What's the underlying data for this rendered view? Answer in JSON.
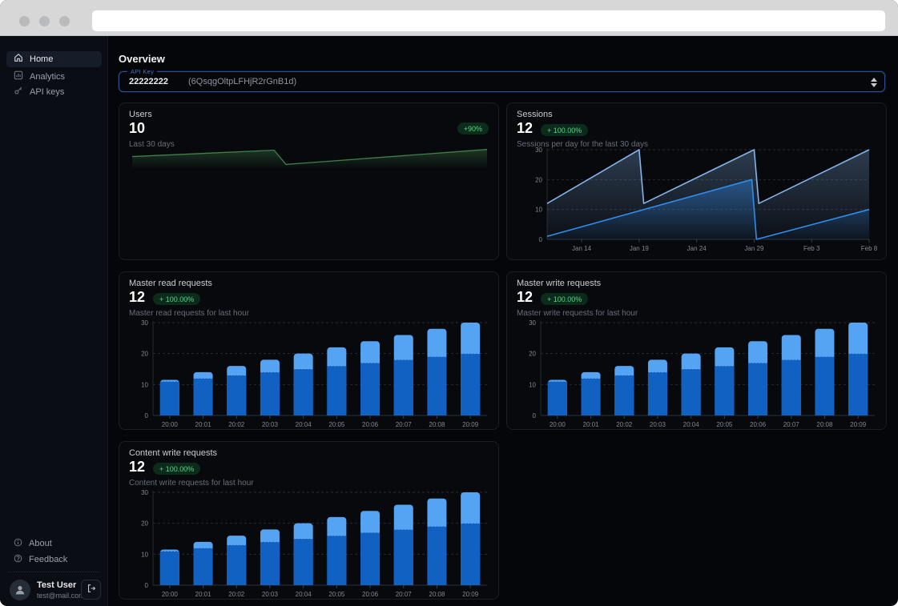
{
  "browser": {
    "url": ""
  },
  "sidebar": {
    "items": [
      {
        "label": "Home",
        "icon": "home-icon",
        "active": true
      },
      {
        "label": "Analytics",
        "icon": "analytics-icon",
        "active": false
      },
      {
        "label": "API keys",
        "icon": "key-icon",
        "active": false
      }
    ],
    "footer_items": [
      {
        "label": "About",
        "icon": "info-icon"
      },
      {
        "label": "Feedback",
        "icon": "feedback-icon"
      }
    ],
    "user": {
      "name": "Test User",
      "email": "test@mail.com"
    }
  },
  "header": {
    "title": "Overview"
  },
  "api_key_select": {
    "label": "API Key",
    "key_name": "22222222",
    "key_value": "(6QsqgOltpLFHjR2rGnB1d)"
  },
  "cards": [
    {
      "title": "Users",
      "value": "10",
      "badge": "+90%",
      "subtitle": "Last 30 days"
    },
    {
      "title": "Sessions",
      "value": "12",
      "badge": "+ 100.00%",
      "subtitle": "Sessions per day for the last 30 days"
    },
    {
      "title": "Master read requests",
      "value": "12",
      "badge": "+ 100.00%",
      "subtitle": "Master read requests for last hour"
    },
    {
      "title": "Master write requests",
      "value": "12",
      "badge": "+ 100.00%",
      "subtitle": "Master write requests for last hour"
    },
    {
      "title": "Content write requests",
      "value": "12",
      "badge": "+ 100.00%",
      "subtitle": "Content write requests for last hour"
    }
  ],
  "colors": {
    "accent_blue_border": "#2c5092",
    "bar_dark_blue": "#1061c2",
    "bar_light_blue": "#54a4f3",
    "sessions_outer_line": "#85b3e8",
    "sessions_inner_line": "#2f8df0",
    "sparkline_green": "#3f8049",
    "badge_green_text": "#52d987",
    "badge_green_bg": "#0b2b1b"
  },
  "chart_data": [
    {
      "type": "line",
      "title": "Users",
      "note": "sparkline, no axes shown; y values estimated on 0-10 scale, x = days over last 30 days",
      "color": "#3f8049",
      "ylim": [
        0,
        10
      ],
      "x_max": 30,
      "points": [
        [
          0,
          5.6
        ],
        [
          12,
          8.9
        ],
        [
          13,
          1.5
        ],
        [
          30,
          9.3
        ]
      ],
      "grid": false
    },
    {
      "type": "area",
      "title": "Sessions",
      "x_unit": "days since Jan 11",
      "x_max": 28,
      "ylim": [
        0,
        30
      ],
      "yticks": [
        0,
        10,
        20,
        30
      ],
      "xticks": [
        {
          "day": 3,
          "label": "Jan 14"
        },
        {
          "day": 8,
          "label": "Jan 19"
        },
        {
          "day": 13,
          "label": "Jan 24"
        },
        {
          "day": 18,
          "label": "Jan 29"
        },
        {
          "day": 23,
          "label": "Feb 3"
        },
        {
          "day": 28,
          "label": "Feb 8"
        }
      ],
      "grid": true,
      "legend": "none",
      "series": [
        {
          "name": "sessions-outer-sawtooth",
          "color": "#85b3e8",
          "points": [
            [
              0,
              12
            ],
            [
              8,
              30
            ],
            [
              8.4,
              12
            ],
            [
              18,
              30
            ],
            [
              18.4,
              12
            ],
            [
              28,
              30
            ]
          ]
        },
        {
          "name": "sessions-inner-sawtooth",
          "color": "#2f8df0",
          "points": [
            [
              0,
              1
            ],
            [
              17.8,
              20
            ],
            [
              18.2,
              0
            ],
            [
              28,
              10
            ]
          ]
        }
      ]
    },
    {
      "type": "bar",
      "title": "Master read requests",
      "stacked": true,
      "categories": [
        "20:00",
        "20:01",
        "20:02",
        "20:03",
        "20:04",
        "20:05",
        "20:06",
        "20:07",
        "20:08",
        "20:09"
      ],
      "ylim": [
        0,
        30
      ],
      "yticks": [
        0,
        10,
        20,
        30
      ],
      "series": [
        {
          "name": "lower-segment",
          "color": "#1061c2",
          "values": [
            11,
            12,
            13,
            14,
            15,
            16,
            17,
            18,
            19,
            20
          ]
        },
        {
          "name": "upper-segment",
          "color": "#54a4f3",
          "values": [
            0.5,
            2,
            3,
            4,
            5,
            6,
            7,
            8,
            9,
            10
          ]
        }
      ]
    },
    {
      "type": "bar",
      "title": "Master write requests",
      "stacked": true,
      "categories": [
        "20:00",
        "20:01",
        "20:02",
        "20:03",
        "20:04",
        "20:05",
        "20:06",
        "20:07",
        "20:08",
        "20:09"
      ],
      "ylim": [
        0,
        30
      ],
      "yticks": [
        0,
        10,
        20,
        30
      ],
      "series": [
        {
          "name": "lower-segment",
          "color": "#1061c2",
          "values": [
            11,
            12,
            13,
            14,
            15,
            16,
            17,
            18,
            19,
            20
          ]
        },
        {
          "name": "upper-segment",
          "color": "#54a4f3",
          "values": [
            0.5,
            2,
            3,
            4,
            5,
            6,
            7,
            8,
            9,
            10
          ]
        }
      ]
    },
    {
      "type": "bar",
      "title": "Content write requests",
      "stacked": true,
      "categories": [
        "20:00",
        "20:01",
        "20:02",
        "20:03",
        "20:04",
        "20:05",
        "20:06",
        "20:07",
        "20:08",
        "20:09"
      ],
      "ylim": [
        0,
        30
      ],
      "yticks": [
        0,
        10,
        20,
        30
      ],
      "series": [
        {
          "name": "lower-segment",
          "color": "#1061c2",
          "values": [
            11,
            12,
            13,
            14,
            15,
            16,
            17,
            18,
            19,
            20
          ]
        },
        {
          "name": "upper-segment",
          "color": "#54a4f3",
          "values": [
            0.5,
            2,
            3,
            4,
            5,
            6,
            7,
            8,
            9,
            10
          ]
        }
      ]
    }
  ]
}
